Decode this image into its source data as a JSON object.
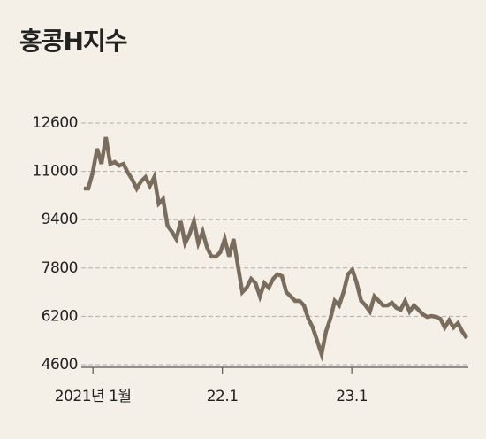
{
  "chart_data": {
    "type": "line",
    "title": "홍콩H지수",
    "x": [
      2020.93,
      2020.964,
      2020.998,
      2021.032,
      2021.066,
      2021.1,
      2021.134,
      2021.168,
      2021.202,
      2021.236,
      2021.27,
      2021.304,
      2021.338,
      2021.372,
      2021.406,
      2021.44,
      2021.474,
      2021.508,
      2021.542,
      2021.576,
      2021.61,
      2021.644,
      2021.678,
      2021.712,
      2021.746,
      2021.78,
      2021.814,
      2021.848,
      2021.882,
      2021.916,
      2021.95,
      2021.984,
      2022.018,
      2022.052,
      2022.086,
      2022.12,
      2022.154,
      2022.188,
      2022.222,
      2022.256,
      2022.29,
      2022.324,
      2022.358,
      2022.392,
      2022.426,
      2022.46,
      2022.494,
      2022.528,
      2022.562,
      2022.596,
      2022.63,
      2022.664,
      2022.698,
      2022.732,
      2022.766,
      2022.8,
      2022.834,
      2022.868,
      2022.902,
      2022.936,
      2022.97,
      2023.004,
      2023.038,
      2023.072,
      2023.106,
      2023.14,
      2023.174,
      2023.208,
      2023.242,
      2023.276,
      2023.31,
      2023.344,
      2023.378,
      2023.412,
      2023.446,
      2023.48,
      2023.514,
      2023.548,
      2023.582,
      2023.616,
      2023.65,
      2023.684,
      2023.718,
      2023.752,
      2023.786,
      2023.82,
      2023.854,
      2023.888
    ],
    "series": [
      {
        "name": "홍콩H지수",
        "color": "#7b6d5d",
        "values": [
          10430,
          10430,
          10960,
          11750,
          11250,
          12130,
          11250,
          11310,
          11190,
          11250,
          10960,
          10725,
          10430,
          10670,
          10810,
          10520,
          10810,
          9930,
          10080,
          9200,
          9000,
          8760,
          9350,
          8620,
          8910,
          9350,
          8620,
          9000,
          8470,
          8180,
          8180,
          8320,
          8760,
          8180,
          8760,
          7880,
          7000,
          7150,
          7440,
          7300,
          6860,
          7300,
          7150,
          7440,
          7590,
          7530,
          7000,
          6860,
          6710,
          6710,
          6560,
          6120,
          5830,
          5390,
          4950,
          5690,
          6120,
          6710,
          6560,
          7000,
          7590,
          7740,
          7300,
          6710,
          6560,
          6360,
          6860,
          6710,
          6560,
          6560,
          6650,
          6480,
          6420,
          6710,
          6360,
          6560,
          6420,
          6270,
          6180,
          6210,
          6180,
          6120,
          5830,
          6070,
          5830,
          5980,
          5690,
          5480
        ]
      }
    ],
    "xlim": [
      2020.91,
      2023.9
    ],
    "xticks": [
      {
        "value": 2021,
        "label": "2021년 1월"
      },
      {
        "value": 2022,
        "label": "22.1"
      },
      {
        "value": 2023,
        "label": "23.1"
      }
    ],
    "ylim": [
      4600,
      12600
    ],
    "yticks": [
      4600,
      6200,
      7800,
      9400,
      11000,
      12600
    ],
    "grid": true
  }
}
